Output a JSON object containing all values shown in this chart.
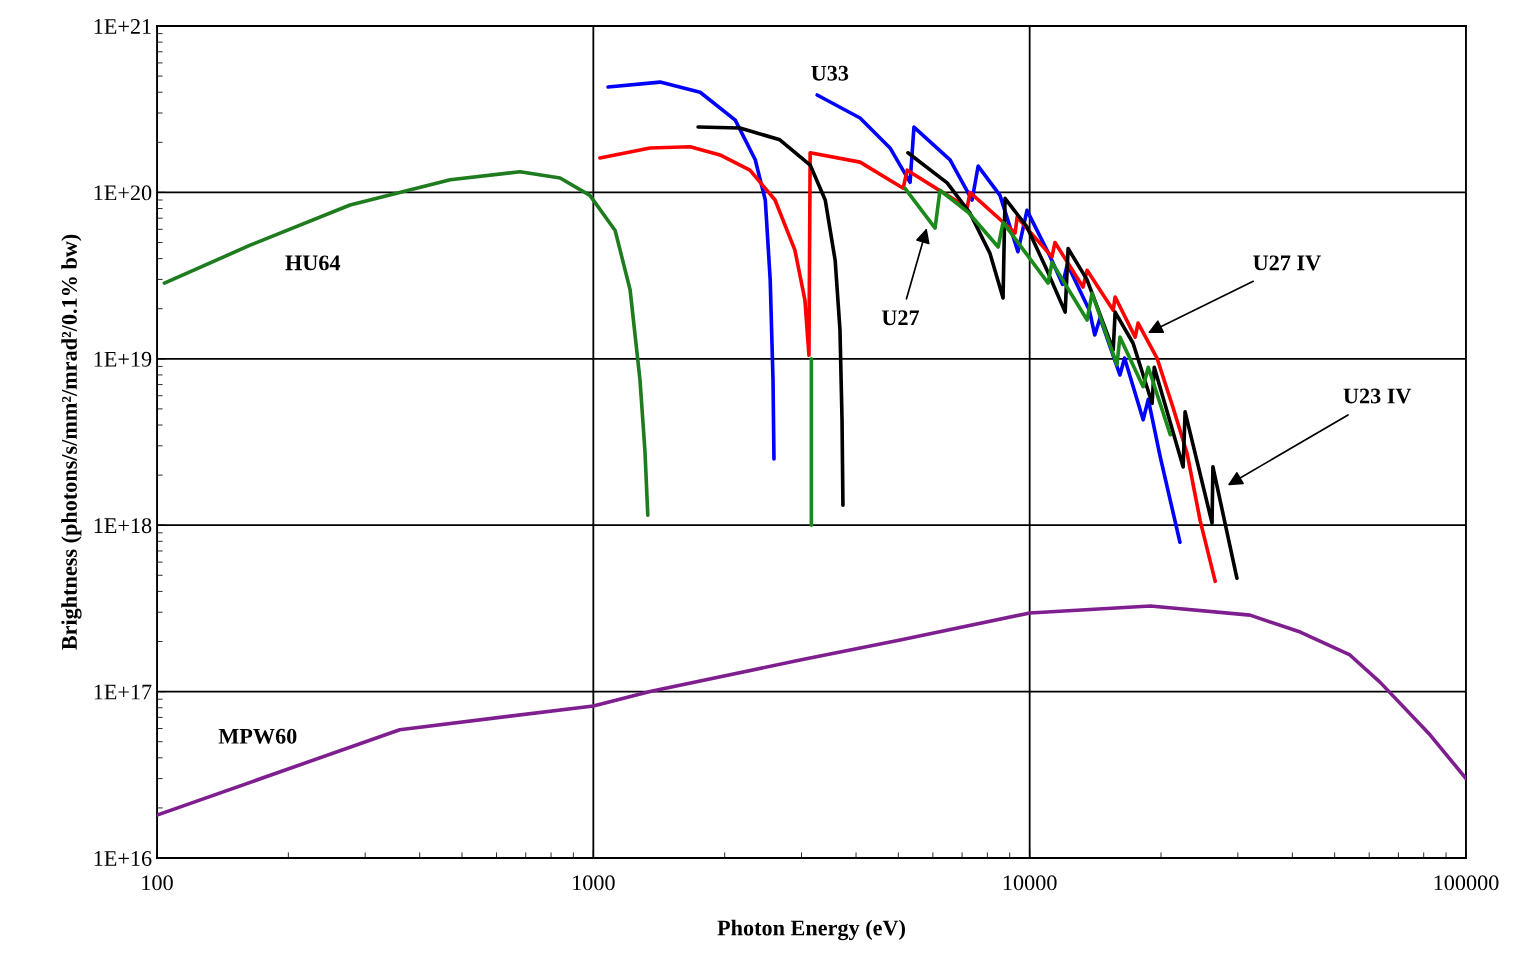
{
  "chart_data": {
    "type": "line",
    "xlabel": "Photon Energy (eV)",
    "ylabel": "Brightness (photons/s/mm²/mrad²/0.1% bw)",
    "log": "xy",
    "grid": true,
    "legend": false,
    "marker": "none",
    "line_style": "solid",
    "xlim": [
      100,
      100000
    ],
    "xticks": [
      100,
      1000,
      10000,
      100000
    ],
    "ylim": [
      1e+16,
      1e+21
    ],
    "yticks": [
      {
        "value": 1e+16,
        "label": "1E+16"
      },
      {
        "value": 1e+17,
        "label": "1E+17"
      },
      {
        "value": 1e+18,
        "label": "1E+18"
      },
      {
        "value": 1e+19,
        "label": "1E+19"
      },
      {
        "value": 1e+20,
        "label": "1E+20"
      },
      {
        "value": 1e+21,
        "label": "1E+21"
      }
    ],
    "series": [
      {
        "color": "#1e7b1e",
        "x": [
          104,
          163,
          277,
          470,
          679,
          839,
          982,
          1122,
          1214,
          1279,
          1313,
          1333
        ],
        "values": [
          2.85e+19,
          4.8e+19,
          8.4e+19,
          1.19e+20,
          1.33e+20,
          1.22e+20,
          9.6e+19,
          5.9e+19,
          2.6e+19,
          7.5e+18,
          2.8e+18,
          1.15e+18
        ]
      },
      {
        "color": "#7f1f8f",
        "x": [
          100,
          360,
          1000,
          1349,
          2978,
          5050,
          10000,
          18900,
          32000,
          41700,
          54200,
          63500,
          82700,
          100000
        ],
        "values": [
          1.81e+16,
          5.9e+16,
          8.2e+16,
          1e+17,
          1.55e+17,
          2.04e+17,
          2.97e+17,
          3.27e+17,
          2.88e+17,
          2.28e+17,
          1.66e+17,
          1.14e+17,
          5.5e+16,
          3e+16
        ]
      },
      {
        "color": "#0000ff",
        "x": [
          1081,
          1422,
          1757,
          2115,
          2350,
          2478,
          2543,
          2581,
          2594
        ],
        "values": [
          4.3e+20,
          4.6e+20,
          4e+20,
          2.72e+20,
          1.57e+20,
          9e+19,
          2.98e+19,
          7.5e+18,
          2.5e+18
        ]
      },
      {
        "color": "#0000ff",
        "x": [
          3258,
          4086,
          4786,
          5320,
          5430,
          6570,
          7380,
          7620,
          8550,
          9400,
          9860,
          11100,
          11900,
          12200,
          13700,
          14100,
          14500,
          16100,
          16500,
          18200,
          18700,
          19900,
          22100
        ],
        "values": [
          3.85e+20,
          2.8e+20,
          1.85e+20,
          1.15e+20,
          2.47e+20,
          1.57e+20,
          9e+19,
          1.44e+20,
          9.6e+19,
          4.4e+19,
          7.8e+19,
          4.2e+19,
          2.8e+19,
          3.7e+19,
          1.96e+19,
          1.39e+19,
          1.76e+19,
          8e+18,
          1.01e+19,
          4.3e+18,
          5.7e+18,
          2.6e+18,
          7.9e+17
        ]
      },
      {
        "color": "#ff0000",
        "x": [
          1035,
          1349,
          1667,
          1951,
          2285,
          2609,
          2897,
          3054,
          3120,
          3140,
          4086,
          5130,
          5240,
          7190,
          7300,
          9260,
          9360,
          11250,
          11430,
          13250,
          13540,
          15540,
          15700,
          17450,
          17720,
          19580,
          21310,
          22950,
          24580,
          26620
        ],
        "values": [
          1.61e+20,
          1.85e+20,
          1.88e+20,
          1.68e+20,
          1.36e+20,
          9e+19,
          4.5e+19,
          2.26e+19,
          1.05e+19,
          1.73e+20,
          1.52e+20,
          1.06e+20,
          1.36e+20,
          8.1e+19,
          1e+20,
          5.7e+19,
          7.1e+19,
          4.1e+19,
          5e+19,
          2.7e+19,
          3.4e+19,
          1.96e+19,
          2.35e+19,
          1.35e+19,
          1.64e+19,
          1.01e+19,
          5.1e+18,
          2.7e+18,
          1.07e+18,
          4.6e+17
        ]
      },
      {
        "color": "#000000",
        "x": [
          1738,
          2168,
          2676,
          3140,
          3400,
          3583,
          3675,
          3715,
          3733
        ],
        "values": [
          2.47e+20,
          2.44e+20,
          2.07e+20,
          1.46e+20,
          9e+19,
          3.9e+19,
          1.49e+19,
          4.3e+18,
          1.32e+18
        ]
      },
      {
        "color": "#000000",
        "x": [
          5260,
          6470,
          7300,
          8110,
          8690,
          8780,
          9860,
          10960,
          12060,
          12250,
          13540,
          15540,
          15700,
          17260,
          19080,
          19300,
          22480,
          22710,
          26180,
          26300,
          29850
        ],
        "values": [
          1.73e+20,
          1.14e+20,
          7.5e+19,
          4.3e+19,
          2.32e+19,
          9.2e+19,
          6.2e+19,
          3.4e+19,
          1.91e+19,
          4.6e+19,
          2.98e+19,
          1.13e+19,
          1.91e+19,
          1.24e+19,
          5.4e+18,
          8.9e+18,
          2.24e+18,
          4.8e+18,
          1.03e+18,
          2.24e+18,
          4.8e+17
        ]
      },
      {
        "color": "#1a8a1a",
        "x": [
          3160,
          3160
        ],
        "values": [
          1e+19,
          1e+18
        ]
      },
      {
        "color": "#1a8a1a",
        "x": [
          5175,
          6070,
          6230,
          7230,
          8470,
          8690,
          11020,
          11250,
          13540,
          13900,
          15850,
          16100,
          18200,
          18700,
          21000
        ],
        "values": [
          1.06e+20,
          6.1e+19,
          1.03e+20,
          7.6e+19,
          4.7e+19,
          6.6e+19,
          2.85e+19,
          3.8e+19,
          1.71e+19,
          2.48e+19,
          9.2e+18,
          1.35e+19,
          6.8e+18,
          8.9e+18,
          3.5e+18
        ]
      }
    ],
    "annotations": [
      "HU64",
      "U33",
      "MPW60",
      "U27",
      {
        "text": "U27 IV",
        "x": 18660,
        "y": 1.43e+19
      },
      "U23 IV"
    ]
  }
}
